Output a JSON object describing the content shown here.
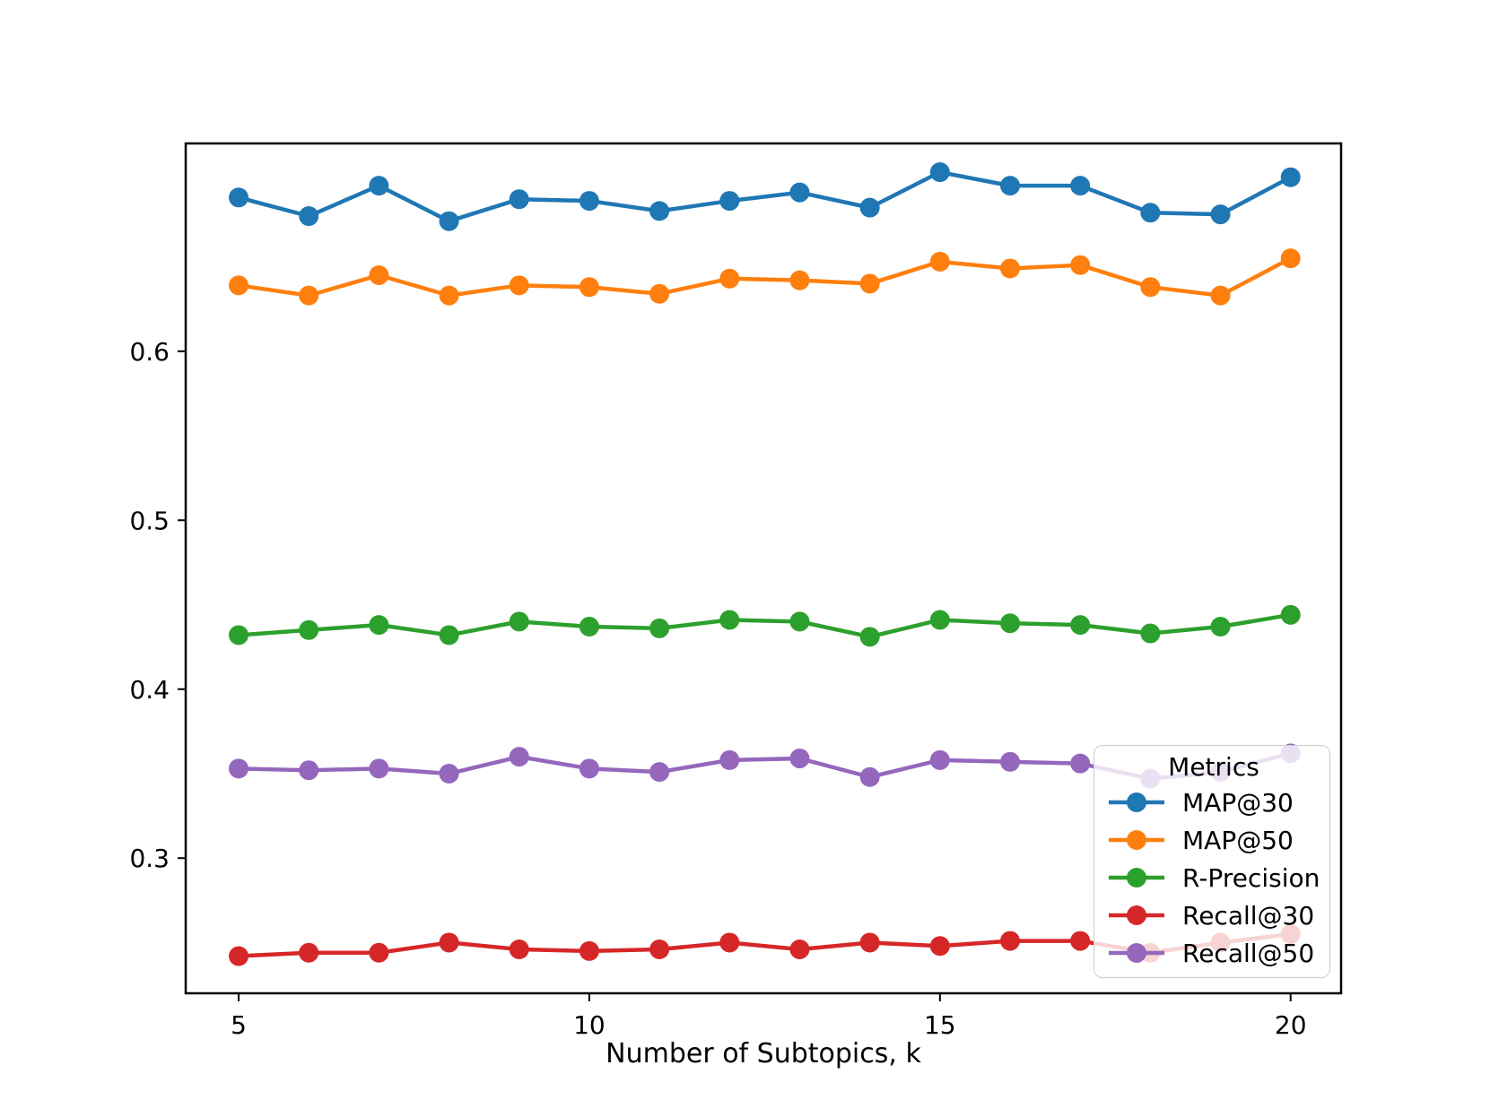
{
  "chart_data": {
    "type": "line",
    "xlabel": "Number of Subtopics, k",
    "ylabel": "",
    "x": [
      5,
      6,
      7,
      8,
      9,
      10,
      11,
      12,
      13,
      14,
      15,
      16,
      17,
      18,
      19,
      20
    ],
    "series": [
      {
        "name": "MAP@30",
        "color": "#1f77b4",
        "values": [
          0.691,
          0.68,
          0.698,
          0.677,
          0.69,
          0.689,
          0.683,
          0.689,
          0.694,
          0.685,
          0.706,
          0.698,
          0.698,
          0.682,
          0.681,
          0.703
        ]
      },
      {
        "name": "MAP@50",
        "color": "#ff7f0e",
        "values": [
          0.639,
          0.633,
          0.645,
          0.633,
          0.639,
          0.638,
          0.634,
          0.643,
          0.642,
          0.64,
          0.653,
          0.649,
          0.651,
          0.638,
          0.633,
          0.655
        ]
      },
      {
        "name": "R-Precision",
        "color": "#2ca02c",
        "values": [
          0.432,
          0.435,
          0.438,
          0.432,
          0.44,
          0.437,
          0.436,
          0.441,
          0.44,
          0.431,
          0.441,
          0.439,
          0.438,
          0.433,
          0.437,
          0.444
        ]
      },
      {
        "name": "Recall@30",
        "color": "#d62728",
        "values": [
          0.242,
          0.244,
          0.244,
          0.25,
          0.246,
          0.245,
          0.246,
          0.25,
          0.246,
          0.25,
          0.248,
          0.251,
          0.251,
          0.244,
          0.25,
          0.255
        ]
      },
      {
        "name": "Recall@50",
        "color": "#9467bd",
        "values": [
          0.353,
          0.352,
          0.353,
          0.35,
          0.36,
          0.353,
          0.351,
          0.358,
          0.359,
          0.348,
          0.358,
          0.357,
          0.356,
          0.347,
          0.351,
          0.362
        ]
      }
    ],
    "xlim": [
      4.245,
      20.72
    ],
    "ylim": [
      0.22,
      0.723
    ],
    "xticks": [
      5,
      10,
      15,
      20
    ],
    "yticks": [
      0.3,
      0.4,
      0.5,
      0.6
    ],
    "grid": false,
    "legend": {
      "title": "Metrics",
      "position": "lower right"
    }
  }
}
